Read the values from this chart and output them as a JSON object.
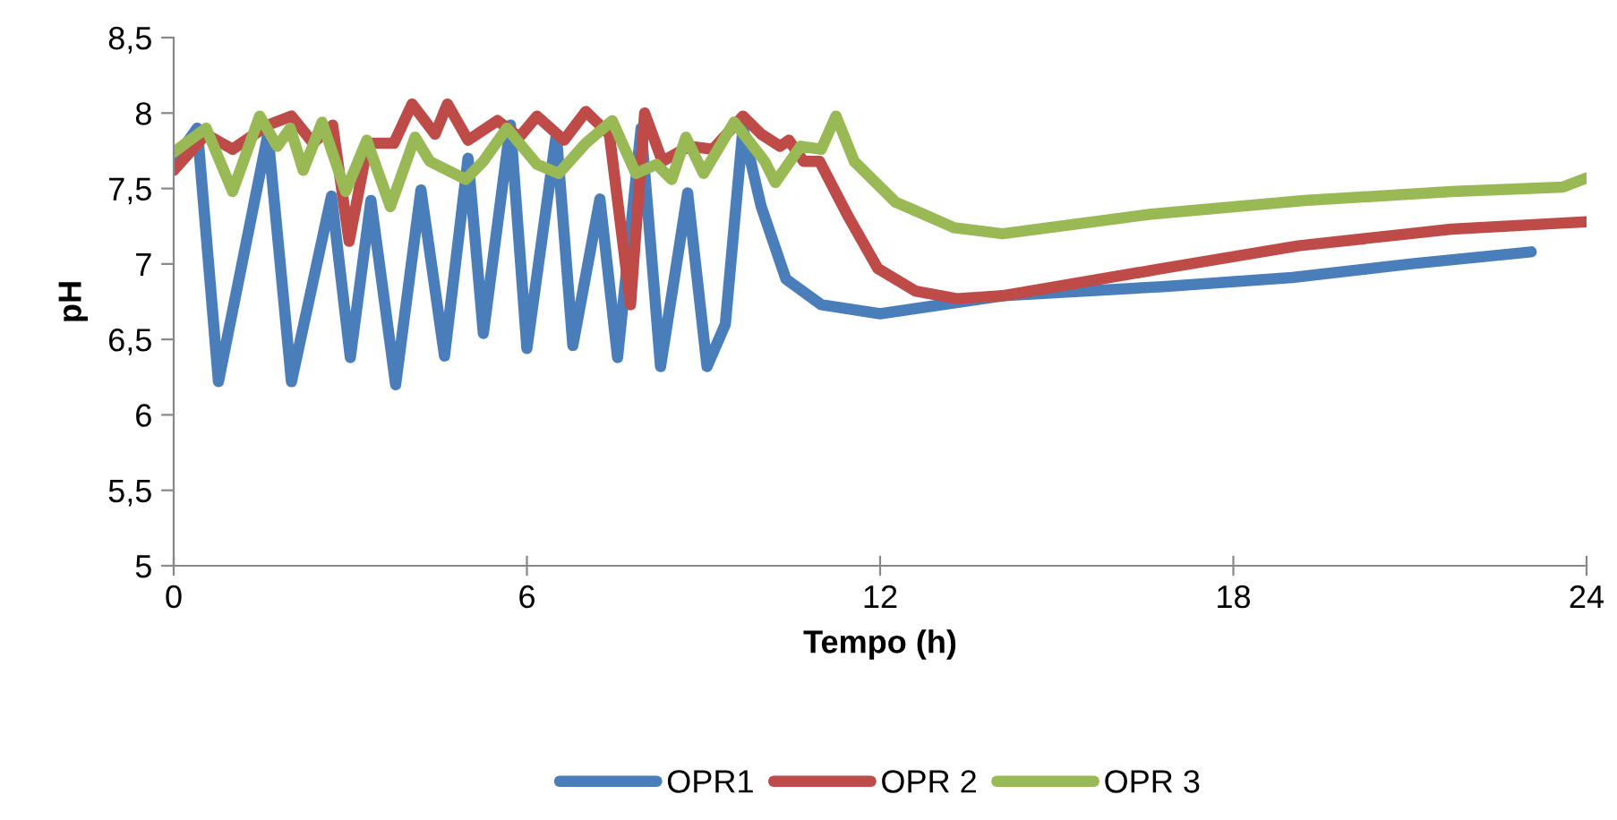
{
  "chart_data": {
    "type": "line",
    "xlabel": "Tempo (h)",
    "ylabel": "pH",
    "xlim": [
      0,
      24
    ],
    "xticks": [
      0,
      6,
      12,
      18,
      24
    ],
    "ylim": [
      5,
      8.5
    ],
    "yticks": [
      5,
      {
        "value": 5.5,
        "label": "5,5"
      },
      6,
      {
        "value": 6.5,
        "label": "6,5"
      },
      7,
      {
        "value": 7.5,
        "label": "7,5"
      },
      8,
      {
        "value": 8.5,
        "label": "8,5"
      }
    ],
    "grid": false,
    "legend": "bottom",
    "marker": "none",
    "line_style": "solid",
    "series": [
      {
        "name": "OPR1",
        "color": "#4a7ebb",
        "x": [
          0,
          0.4,
          0.76,
          1.6,
          2.0,
          2.68,
          3.0,
          3.35,
          3.77,
          4.2,
          4.6,
          5.0,
          5.26,
          5.72,
          6.0,
          6.5,
          6.78,
          7.24,
          7.54,
          7.94,
          8.27,
          8.73,
          9.06,
          9.37,
          9.67,
          9.98,
          10.4,
          11.0,
          12.0,
          14.1,
          16.8,
          19.0,
          21.0,
          23.06
        ],
        "values": [
          7.68,
          7.9,
          6.22,
          7.86,
          6.22,
          7.45,
          6.38,
          7.42,
          6.2,
          7.49,
          6.39,
          7.7,
          6.54,
          7.92,
          6.44,
          7.86,
          6.46,
          7.43,
          6.38,
          7.9,
          6.32,
          7.47,
          6.32,
          6.6,
          7.9,
          7.38,
          6.9,
          6.73,
          6.67,
          6.79,
          6.85,
          6.91,
          7.0,
          7.08
        ]
      },
      {
        "name": "OPR 2",
        "color": "#be4b48",
        "x": [
          0,
          0.55,
          1.0,
          1.6,
          2.0,
          2.37,
          2.7,
          2.98,
          3.3,
          3.74,
          4.05,
          4.44,
          4.65,
          5.0,
          5.5,
          5.87,
          6.17,
          6.63,
          7.0,
          7.4,
          7.76,
          8.0,
          8.3,
          8.76,
          9.16,
          9.67,
          9.98,
          10.3,
          10.45,
          10.7,
          10.97,
          11.45,
          11.96,
          12.6,
          13.3,
          14.1,
          16.8,
          19.1,
          21.7,
          24
        ],
        "values": [
          7.62,
          7.86,
          7.76,
          7.92,
          7.98,
          7.8,
          7.92,
          7.15,
          7.8,
          7.8,
          8.06,
          7.86,
          8.06,
          7.82,
          7.95,
          7.84,
          7.98,
          7.82,
          8.01,
          7.86,
          6.73,
          8.0,
          7.68,
          7.78,
          7.76,
          7.98,
          7.86,
          7.78,
          7.82,
          7.68,
          7.68,
          7.32,
          6.97,
          6.82,
          6.77,
          6.79,
          6.97,
          7.12,
          7.23,
          7.28
        ]
      },
      {
        "name": "OPR 3",
        "color": "#98b954",
        "x": [
          0,
          0.55,
          1.0,
          1.46,
          1.76,
          1.98,
          2.2,
          2.52,
          2.92,
          3.28,
          3.68,
          4.1,
          4.35,
          4.96,
          5.26,
          5.66,
          6.17,
          6.54,
          7.0,
          7.45,
          7.85,
          8.2,
          8.46,
          8.7,
          9.0,
          9.52,
          10.04,
          10.22,
          10.65,
          11.0,
          11.25,
          11.56,
          12.26,
          13.26,
          14.08,
          16.6,
          19.2,
          21.7,
          23.6,
          24
        ],
        "values": [
          7.74,
          7.9,
          7.48,
          7.98,
          7.78,
          7.9,
          7.62,
          7.94,
          7.48,
          7.82,
          7.38,
          7.84,
          7.68,
          7.56,
          7.68,
          7.9,
          7.66,
          7.6,
          7.8,
          7.95,
          7.6,
          7.66,
          7.56,
          7.84,
          7.6,
          7.94,
          7.68,
          7.54,
          7.78,
          7.76,
          7.98,
          7.68,
          7.41,
          7.24,
          7.2,
          7.33,
          7.42,
          7.48,
          7.51,
          7.57
        ]
      }
    ]
  }
}
